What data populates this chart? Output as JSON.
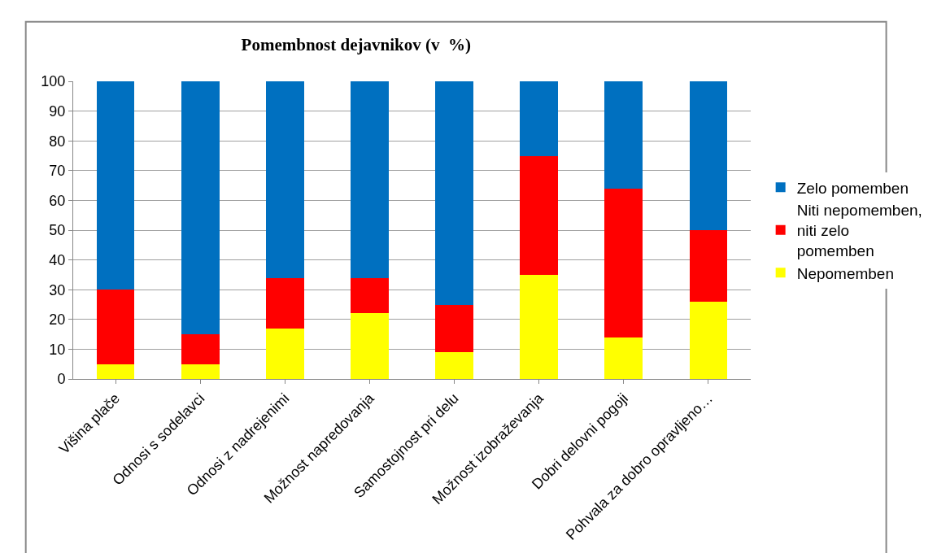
{
  "chart_data": {
    "type": "bar",
    "stacked": true,
    "title": "Pomembnost dejavnikov (v  %)",
    "categories": [
      "Višina plače",
      "Odnosi s sodelavci",
      "Odnosi z nadrejenimi",
      "Možnost napredovanja",
      "Samostojnost pri delu",
      "Možnost izobraževanja",
      "Dobri delovni pogoji",
      "Pohvala za dobro opravljeno…"
    ],
    "series": [
      {
        "name": "Nepomemben",
        "color": "#ffff00",
        "values": [
          5,
          5,
          17,
          22,
          9,
          35,
          14,
          26
        ]
      },
      {
        "name": "Niti nepomemben, niti zelo pomemben",
        "color": "#ff0000",
        "values": [
          25,
          10,
          17,
          12,
          16,
          40,
          50,
          24
        ]
      },
      {
        "name": "Zelo pomemben",
        "color": "#0070c0",
        "values": [
          70,
          85,
          66,
          66,
          75,
          25,
          36,
          50
        ]
      }
    ],
    "ylim": [
      0,
      100
    ],
    "yticks": [
      0,
      10,
      20,
      30,
      40,
      50,
      60,
      70,
      80,
      90,
      100
    ],
    "grid": "y",
    "legend": "right"
  }
}
